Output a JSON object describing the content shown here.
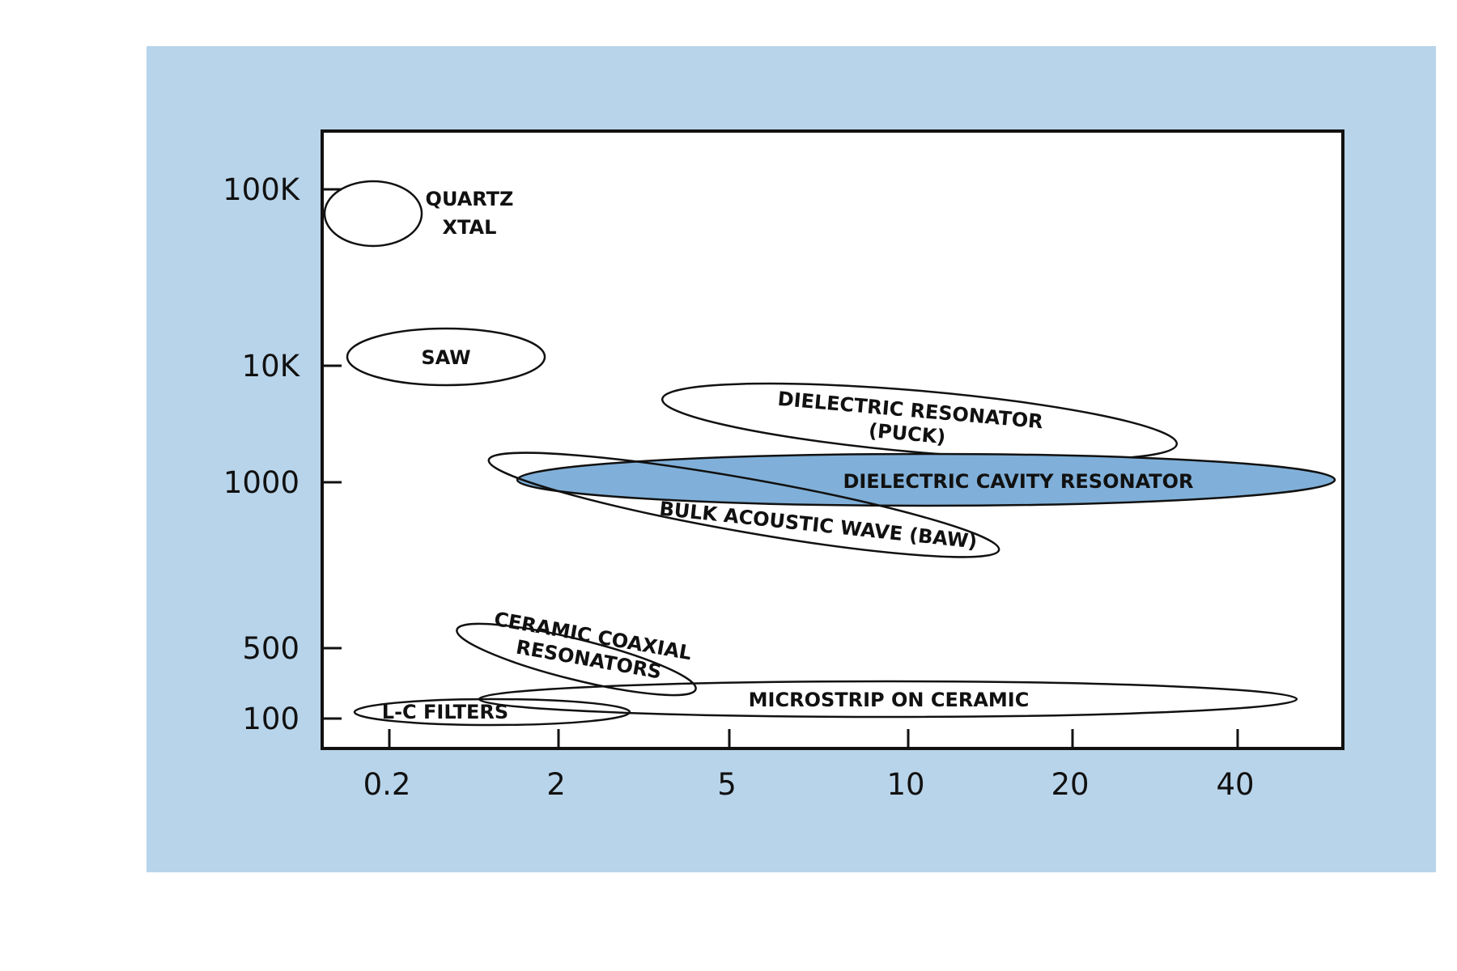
{
  "colors": {
    "panel": "#b8d4ea",
    "plot_background": "#ffffff",
    "frame": "#111111",
    "highlight_fill": "#80b0d9"
  },
  "chart_data": {
    "type": "scatter",
    "title": "",
    "xlabel": "",
    "ylabel": "",
    "x_ticks": [
      "0.2",
      "2",
      "5",
      "10",
      "20",
      "40"
    ],
    "y_ticks": [
      "100K",
      "10K",
      "1000",
      "500",
      "100"
    ],
    "grid": false,
    "legend": "none",
    "regions": [
      {
        "label": "QUARTZ XTAL",
        "lines": [
          "QUARTZ",
          "XTAL"
        ],
        "x_range": [
          "0.2",
          "0.2"
        ],
        "y_range": [
          "100K",
          "100K"
        ],
        "filled": false
      },
      {
        "label": "SAW",
        "lines": [
          "SAW"
        ],
        "x_range": [
          "0.2",
          "2"
        ],
        "y_range": [
          "10K",
          "10K"
        ],
        "filled": false
      },
      {
        "label": "DIELECTRIC RESONATOR (PUCK)",
        "lines": [
          "DIELECTRIC RESONATOR",
          "(PUCK)"
        ],
        "x_range": [
          "5",
          "20"
        ],
        "y_range": [
          "1000",
          "10K"
        ],
        "filled": false
      },
      {
        "label": "DIELECTRIC CAVITY RESONATOR",
        "lines": [
          "DIELECTRIC CAVITY RESONATOR"
        ],
        "x_range": [
          "2",
          "40"
        ],
        "y_range": [
          "1000",
          "1000"
        ],
        "filled": true
      },
      {
        "label": "BULK ACOUSTIC WAVE (BAW)",
        "lines": [
          "BULK ACOUSTIC WAVE (BAW)"
        ],
        "x_range": [
          "2",
          "10"
        ],
        "y_range": [
          "500",
          "1000"
        ],
        "filled": false
      },
      {
        "label": "CERAMIC COAXIAL RESONATORS",
        "lines": [
          "CERAMIC COAXIAL",
          "RESONATORS"
        ],
        "x_range": [
          "2",
          "5"
        ],
        "y_range": [
          "100",
          "500"
        ],
        "filled": false
      },
      {
        "label": "MICROSTRIP ON CERAMIC",
        "lines": [
          "MICROSTRIP ON CERAMIC"
        ],
        "x_range": [
          "2",
          "40"
        ],
        "y_range": [
          "100",
          "100"
        ],
        "filled": false
      },
      {
        "label": "L-C FILTERS",
        "lines": [
          "L-C FILTERS"
        ],
        "x_range": [
          "0.2",
          "2"
        ],
        "y_range": [
          "100",
          "100"
        ],
        "filled": false
      }
    ]
  }
}
